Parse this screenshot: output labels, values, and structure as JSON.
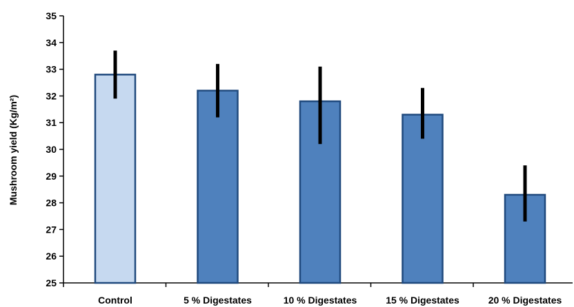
{
  "chart_data": {
    "type": "bar",
    "title": "",
    "xlabel": "",
    "ylabel": "Mushroom yield (Kg/m²)",
    "ylim": [
      25,
      35
    ],
    "yticks": [
      25,
      26,
      27,
      28,
      29,
      30,
      31,
      32,
      33,
      34,
      35
    ],
    "grid": false,
    "legend": "none",
    "categories": [
      "Control",
      "5 % Digestates",
      "10 % Digestates",
      "15 % Digestates",
      "20 % Digestates"
    ],
    "values": [
      32.8,
      32.2,
      31.8,
      31.3,
      28.3
    ],
    "error_low": [
      31.9,
      31.2,
      30.2,
      30.4,
      27.3
    ],
    "error_high": [
      33.7,
      33.2,
      33.1,
      32.3,
      29.4
    ],
    "colors": {
      "control_fill": "#c6d9f0",
      "treatment_fill": "#4f81bd",
      "bar_border": "#1f497d",
      "error_bar": "#000000",
      "axis": "#000000"
    }
  }
}
